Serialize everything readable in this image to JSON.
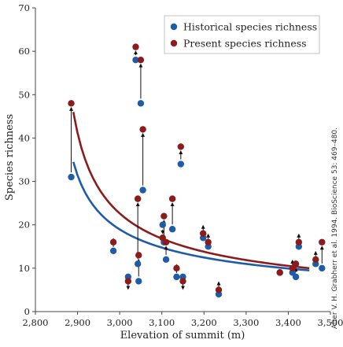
{
  "chart_data": {
    "type": "scatter",
    "xlabel": "Elevation of summit (m)",
    "ylabel": "Species richness",
    "xlim": [
      2800,
      3500
    ],
    "ylim": [
      0,
      70
    ],
    "xticks": [
      2800,
      2900,
      3000,
      3100,
      3200,
      3300,
      3400,
      3500
    ],
    "xtick_labels": [
      "2,800",
      "2,900",
      "3,000",
      "3,100",
      "3,200",
      "3,300",
      "3,400",
      "3,500"
    ],
    "yticks": [
      0,
      10,
      20,
      30,
      40,
      50,
      60,
      70
    ],
    "ytick_labels": [
      "0",
      "10",
      "20",
      "30",
      "40",
      "50",
      "60",
      "70"
    ],
    "grid": false,
    "legend_position": "top-right",
    "credit": "After V. H. Grabherr et al. 1994. BioScience 53: 469–480.",
    "series": [
      {
        "name": "Historical species richness",
        "color": "#1f5ca8",
        "points": [
          [
            2885,
            31
          ],
          [
            2985,
            14
          ],
          [
            3020,
            8
          ],
          [
            3038,
            58
          ],
          [
            3043,
            11
          ],
          [
            3045,
            7
          ],
          [
            3050,
            48
          ],
          [
            3055,
            28
          ],
          [
            3102,
            20
          ],
          [
            3105,
            16
          ],
          [
            3110,
            12
          ],
          [
            3125,
            19
          ],
          [
            3135,
            8
          ],
          [
            3145,
            34
          ],
          [
            3150,
            8
          ],
          [
            3198,
            17
          ],
          [
            3210,
            15
          ],
          [
            3235,
            4
          ],
          [
            3380,
            9
          ],
          [
            3410,
            9
          ],
          [
            3418,
            8
          ],
          [
            3425,
            15
          ],
          [
            3465,
            11
          ],
          [
            3480,
            10
          ]
        ]
      },
      {
        "name": "Present species richness",
        "color": "#8c1c1c",
        "points": [
          [
            2885,
            48
          ],
          [
            2985,
            16
          ],
          [
            3020,
            7
          ],
          [
            3038,
            61
          ],
          [
            3043,
            26
          ],
          [
            3045,
            13
          ],
          [
            3050,
            58
          ],
          [
            3055,
            42
          ],
          [
            3102,
            17
          ],
          [
            3105,
            22
          ],
          [
            3110,
            16
          ],
          [
            3125,
            26
          ],
          [
            3135,
            10
          ],
          [
            3145,
            38
          ],
          [
            3150,
            7
          ],
          [
            3198,
            18
          ],
          [
            3210,
            16
          ],
          [
            3235,
            5
          ],
          [
            3380,
            9
          ],
          [
            3410,
            10
          ],
          [
            3418,
            11
          ],
          [
            3425,
            16
          ],
          [
            3465,
            12
          ],
          [
            3480,
            16
          ]
        ]
      }
    ],
    "trend_lines": [
      {
        "name": "Historical trend",
        "color": "#1f5ca8",
        "x": [
          2890,
          3450
        ],
        "y_start": 34.5,
        "y_end": 9.5
      },
      {
        "name": "Present trend",
        "color": "#8c1c1c",
        "x": [
          2890,
          3450
        ],
        "y_start": 46,
        "y_end": 10
      }
    ]
  }
}
